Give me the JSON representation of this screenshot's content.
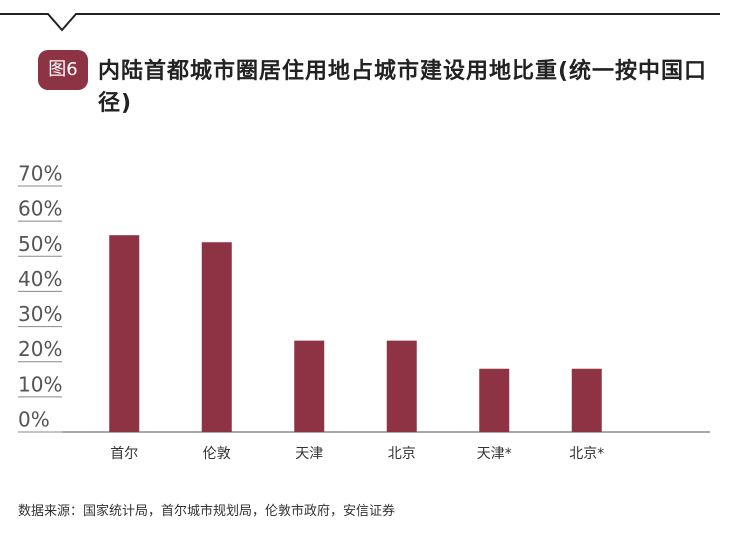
{
  "figure_label": "图6",
  "chart_data": {
    "type": "bar",
    "title": "内陆首都城市圈居住用地占城市建设用地比重(统一按中国口径)",
    "source": "数据来源：国家统计局，首尔城市规划局，伦敦市政府，安信证券",
    "categories": [
      "首尔",
      "伦敦",
      "天津",
      "北京",
      "天津*",
      "北京*"
    ],
    "values": [
      56,
      54,
      26,
      26,
      18,
      18
    ],
    "color": "#8e3344",
    "ylim": [
      0,
      70
    ],
    "yticks": [
      {
        "value": 0,
        "label": "0%"
      },
      {
        "value": 10,
        "label": "10%"
      },
      {
        "value": 20,
        "label": "20%"
      },
      {
        "value": 30,
        "label": "30%"
      },
      {
        "value": 40,
        "label": "40%"
      },
      {
        "value": 50,
        "label": "50%"
      },
      {
        "value": 60,
        "label": "60%"
      },
      {
        "value": 70,
        "label": "70%"
      }
    ]
  }
}
